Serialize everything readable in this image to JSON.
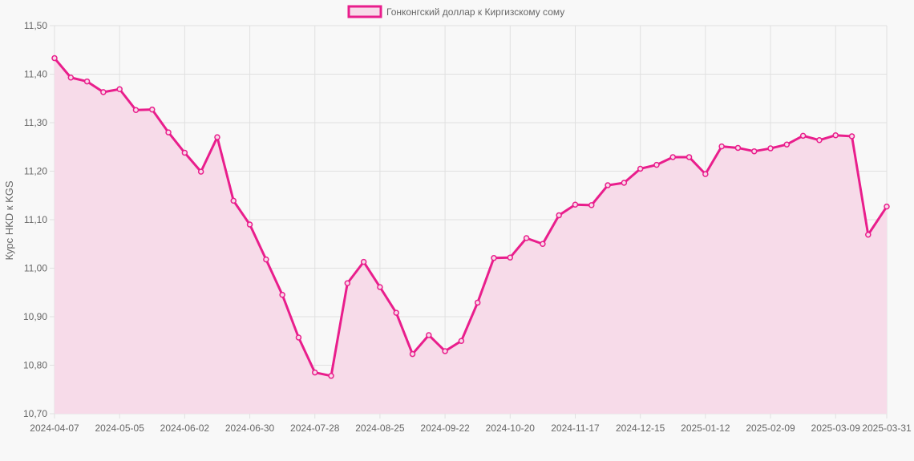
{
  "chart_data": {
    "type": "area",
    "legend": {
      "position": "top-center",
      "label": "Гонконгский доллар к Киргизскому сому"
    },
    "ylabel": "Курс HKD к KGS",
    "xlabel": "",
    "ylim": [
      10.7,
      11.5
    ],
    "y_ticks": [
      "10,70",
      "10,80",
      "10,90",
      "11,00",
      "11,10",
      "11,20",
      "11,30",
      "11,40",
      "11,50"
    ],
    "y_tick_values": [
      10.7,
      10.8,
      10.9,
      11.0,
      11.1,
      11.2,
      11.3,
      11.4,
      11.5
    ],
    "x_ticks": [
      "2024-04-07",
      "2024-05-05",
      "2024-06-02",
      "2024-06-30",
      "2024-07-28",
      "2024-08-25",
      "2024-09-22",
      "2024-10-20",
      "2024-11-17",
      "2024-12-15",
      "2025-01-12",
      "2025-02-09",
      "2025-03-09",
      "2025-03-31"
    ],
    "grid": true,
    "colors": {
      "line": "#e91e8c",
      "fill": "#f7dbe9",
      "grid": "#e0e0e0",
      "background": "#f8f8f8"
    },
    "series": [
      {
        "name": "Гонконгский доллар к Киргизскому сому",
        "x": [
          "2024-04-07",
          "2024-04-14",
          "2024-04-21",
          "2024-04-28",
          "2024-05-05",
          "2024-05-12",
          "2024-05-19",
          "2024-05-26",
          "2024-06-02",
          "2024-06-09",
          "2024-06-16",
          "2024-06-23",
          "2024-06-30",
          "2024-07-07",
          "2024-07-14",
          "2024-07-21",
          "2024-07-28",
          "2024-08-04",
          "2024-08-11",
          "2024-08-18",
          "2024-08-25",
          "2024-09-01",
          "2024-09-08",
          "2024-09-15",
          "2024-09-22",
          "2024-09-29",
          "2024-10-06",
          "2024-10-13",
          "2024-10-20",
          "2024-10-27",
          "2024-11-03",
          "2024-11-10",
          "2024-11-17",
          "2024-11-24",
          "2024-12-01",
          "2024-12-08",
          "2024-12-15",
          "2024-12-22",
          "2024-12-29",
          "2025-01-05",
          "2025-01-12",
          "2025-01-19",
          "2025-01-26",
          "2025-02-02",
          "2025-02-09",
          "2025-02-16",
          "2025-02-23",
          "2025-03-02",
          "2025-03-09",
          "2025-03-16",
          "2025-03-23",
          "2025-03-31"
        ],
        "values": [
          11.433,
          11.393,
          11.385,
          11.363,
          11.369,
          11.326,
          11.327,
          11.28,
          11.238,
          11.199,
          11.27,
          11.139,
          11.09,
          11.018,
          10.945,
          10.857,
          10.785,
          10.778,
          10.969,
          11.013,
          10.961,
          10.908,
          10.823,
          10.862,
          10.829,
          10.85,
          10.929,
          11.021,
          11.022,
          11.062,
          11.05,
          11.109,
          11.131,
          11.13,
          11.171,
          11.176,
          11.205,
          11.213,
          11.229,
          11.229,
          11.194,
          11.251,
          11.248,
          11.241,
          11.247,
          11.255,
          11.273,
          11.264,
          11.274,
          11.272,
          11.069,
          11.127
        ]
      }
    ]
  }
}
